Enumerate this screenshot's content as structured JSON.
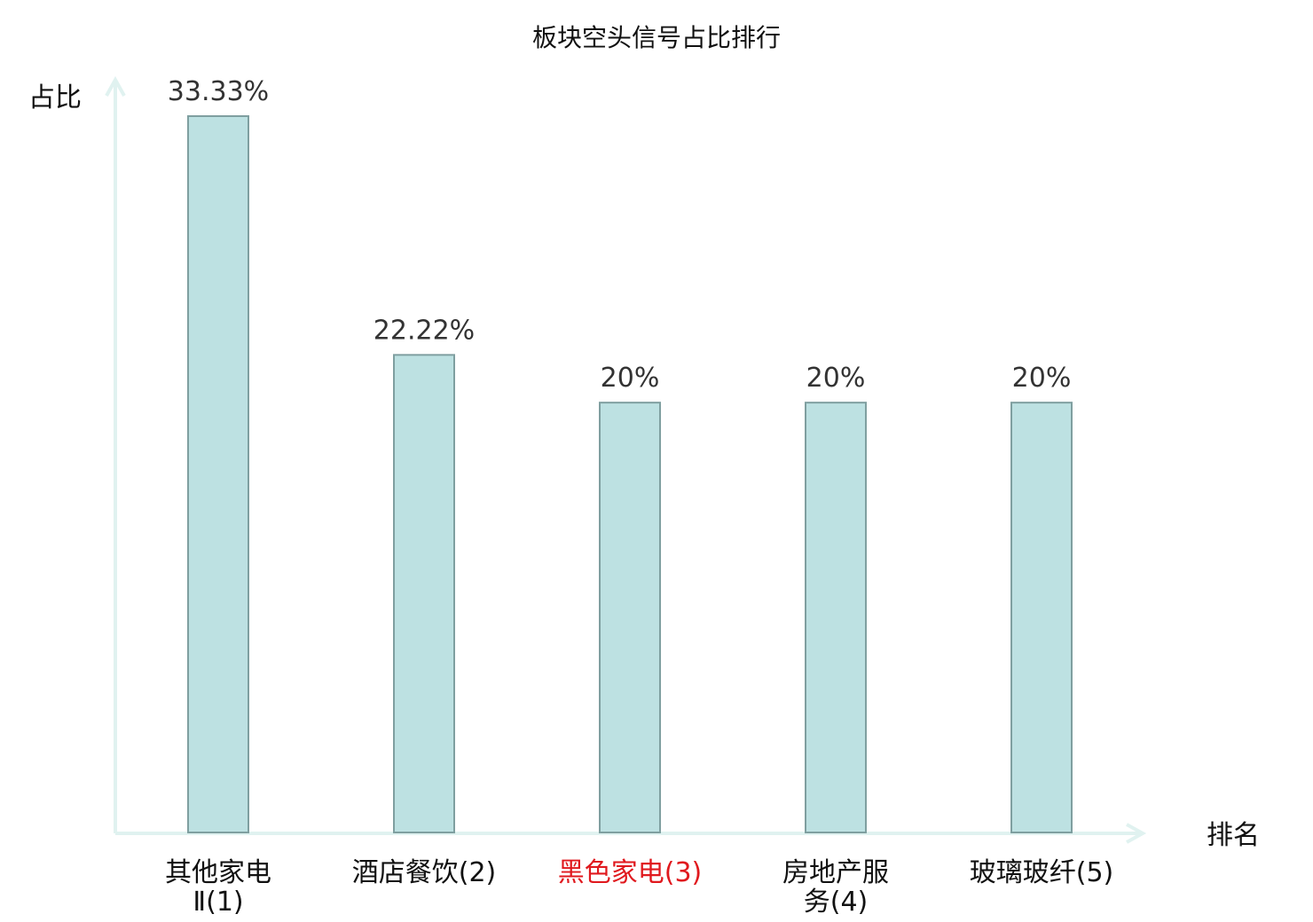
{
  "chart_data": {
    "type": "bar",
    "title": "板块空头信号占比排行",
    "ylabel": "占比",
    "xlabel": "排名",
    "categories": [
      {
        "lines": [
          "其他家电",
          "Ⅱ(1)"
        ],
        "highlight": false
      },
      {
        "lines": [
          "酒店餐饮(2)"
        ],
        "highlight": false
      },
      {
        "lines": [
          "黑色家电(3)"
        ],
        "highlight": true
      },
      {
        "lines": [
          "房地产服",
          "务(4)"
        ],
        "highlight": false
      },
      {
        "lines": [
          "玻璃玻纤(5)"
        ],
        "highlight": false
      }
    ],
    "values": [
      33.33,
      22.22,
      20,
      20,
      20
    ],
    "value_labels": [
      "33.33%",
      "22.22%",
      "20%",
      "20%",
      "20%"
    ],
    "ylim": [
      0,
      33.33
    ],
    "grid": false,
    "colors": {
      "bar_fill": "#bde1e2",
      "bar_stroke": "#7f9fa0",
      "axis": "#e0f2f0",
      "highlight_label": "#e0191e",
      "normal_label": "#111111"
    }
  }
}
